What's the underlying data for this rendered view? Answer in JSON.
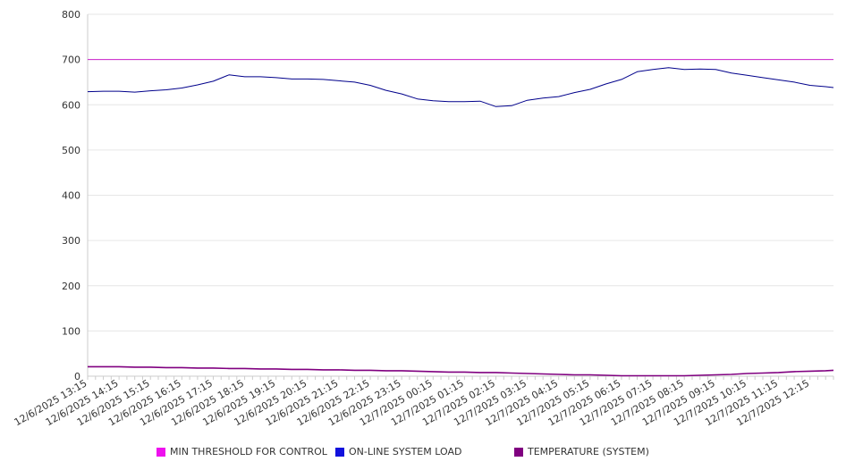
{
  "chart_data": {
    "type": "line",
    "title": "",
    "xlabel": "",
    "ylabel": "",
    "ylim": [
      0,
      800
    ],
    "y_ticks": [
      0,
      100,
      200,
      300,
      400,
      500,
      600,
      700,
      800
    ],
    "grid": true,
    "legend_position": "bottom",
    "x_ticks": [
      "12/6/2025 13:15",
      "12/6/2025 14:15",
      "12/6/2025 15:15",
      "12/6/2025 16:15",
      "12/6/2025 17:15",
      "12/6/2025 18:15",
      "12/6/2025 19:15",
      "12/6/2025 20:15",
      "12/6/2025 21:15",
      "12/6/2025 22:15",
      "12/6/2025 23:15",
      "12/7/2025 00:15",
      "12/7/2025 01:15",
      "12/7/2025 02:15",
      "12/7/2025 03:15",
      "12/7/2025 04:15",
      "12/7/2025 05:15",
      "12/7/2025 06:15",
      "12/7/2025 07:15",
      "12/7/2025 08:15",
      "12/7/2025 09:15",
      "12/7/2025 10:15",
      "12/7/2025 11:15",
      "12/7/2025 12:15"
    ],
    "x": [
      "12/6/2025 13:15",
      "12/6/2025 13:45",
      "12/6/2025 14:15",
      "12/6/2025 14:45",
      "12/6/2025 15:15",
      "12/6/2025 15:45",
      "12/6/2025 16:15",
      "12/6/2025 16:45",
      "12/6/2025 17:15",
      "12/6/2025 17:45",
      "12/6/2025 18:15",
      "12/6/2025 18:45",
      "12/6/2025 19:15",
      "12/6/2025 19:45",
      "12/6/2025 20:15",
      "12/6/2025 20:45",
      "12/6/2025 21:15",
      "12/6/2025 21:45",
      "12/6/2025 22:15",
      "12/6/2025 22:45",
      "12/6/2025 23:15",
      "12/6/2025 23:45",
      "12/7/2025 00:15",
      "12/7/2025 00:45",
      "12/7/2025 01:15",
      "12/7/2025 01:45",
      "12/7/2025 02:15",
      "12/7/2025 02:45",
      "12/7/2025 03:15",
      "12/7/2025 03:45",
      "12/7/2025 04:15",
      "12/7/2025 04:45",
      "12/7/2025 05:15",
      "12/7/2025 05:45",
      "12/7/2025 06:15",
      "12/7/2025 06:45",
      "12/7/2025 07:15",
      "12/7/2025 07:45",
      "12/7/2025 08:15",
      "12/7/2025 08:45",
      "12/7/2025 09:15",
      "12/7/2025 09:45",
      "12/7/2025 10:15",
      "12/7/2025 10:45",
      "12/7/2025 11:15",
      "12/7/2025 11:45",
      "12/7/2025 12:15",
      "12/7/2025 12:45",
      "12/7/2025 13:00"
    ],
    "series": [
      {
        "name": "MIN THRESHOLD FOR CONTROL",
        "color": "#cc22cc",
        "values": [
          700,
          700,
          700,
          700,
          700,
          700,
          700,
          700,
          700,
          700,
          700,
          700,
          700,
          700,
          700,
          700,
          700,
          700,
          700,
          700,
          700,
          700,
          700,
          700,
          700,
          700,
          700,
          700,
          700,
          700,
          700,
          700,
          700,
          700,
          700,
          700,
          700,
          700,
          700,
          700,
          700,
          700,
          700,
          700,
          700,
          700,
          700,
          700,
          700
        ]
      },
      {
        "name": "ON-LINE SYSTEM LOAD",
        "color": "#00008b",
        "values": [
          629,
          630,
          630,
          628,
          631,
          633,
          637,
          644,
          652,
          666,
          662,
          662,
          660,
          657,
          657,
          656,
          653,
          650,
          643,
          632,
          624,
          613,
          609,
          607,
          607,
          608,
          596,
          598,
          610,
          615,
          618,
          627,
          634,
          646,
          656,
          673,
          678,
          682,
          678,
          679,
          678,
          670,
          665,
          660,
          655,
          650,
          643,
          640,
          638
        ]
      },
      {
        "name": "TEMPERATURE (SYSTEM)",
        "color": "#800080",
        "values": [
          21,
          21,
          21,
          20,
          20,
          19,
          19,
          18,
          18,
          17,
          17,
          16,
          16,
          15,
          15,
          14,
          14,
          13,
          13,
          12,
          12,
          11,
          10,
          9,
          9,
          8,
          8,
          7,
          6,
          5,
          4,
          3,
          3,
          2,
          1,
          1,
          1,
          1,
          1,
          2,
          3,
          4,
          6,
          7,
          8,
          10,
          11,
          12,
          13
        ]
      }
    ]
  }
}
